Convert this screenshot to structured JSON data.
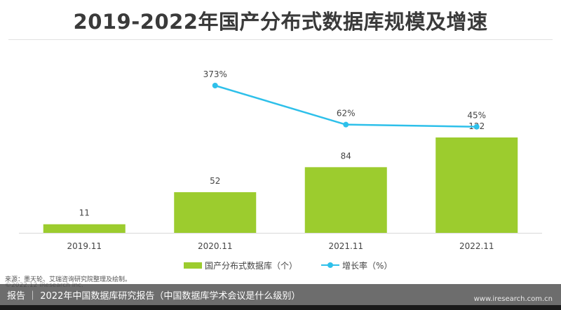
{
  "header": {
    "title": "2019-2022年国产分布式数据库规模及增速"
  },
  "chart_data": {
    "type": "bar",
    "categories": [
      "2019.11",
      "2020.11",
      "2021.11",
      "2022.11"
    ],
    "series": [
      {
        "name": "国产分布式数据库（个）",
        "type": "bar",
        "values": [
          11,
          52,
          84,
          122
        ],
        "color": "#9ccc2e"
      },
      {
        "name": "增长率（%）",
        "type": "line",
        "values": [
          null,
          373,
          62,
          45
        ],
        "labels": [
          "",
          "373%",
          "62%",
          "45%"
        ],
        "color": "#2ec0ea"
      }
    ],
    "bar_ylim": [
      0,
      140
    ],
    "line_ylim": [
      -800,
      500
    ],
    "grid": false,
    "legend_position": "bottom"
  },
  "legend": {
    "bar_label": "国产分布式数据库（个）",
    "line_label": "增长率（%）"
  },
  "source": "来源：墨天轮、艾瑞咨询研究院整理及绘制。",
  "copyright": "©2022.12 iResearch Inc.",
  "footer": {
    "text": "报告 ｜ 2022年中国数据库研究报告（中国数据库学术会议是什么级别）",
    "watermark": "www.iresearch.com.cn"
  }
}
